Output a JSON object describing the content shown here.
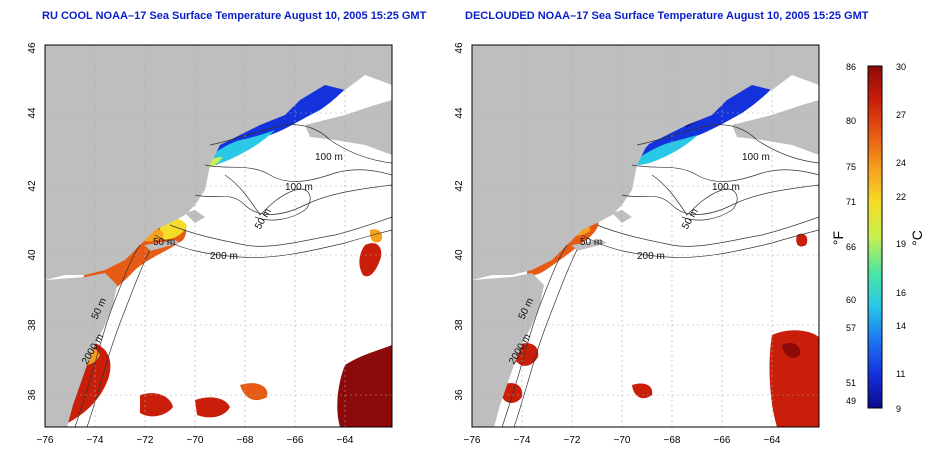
{
  "panels": [
    {
      "title": "RU COOL NOAA–17 Sea Surface Temperature August 10, 2005 15:25 GMT",
      "contour_labels": [
        "100 m",
        "100 m",
        "50 m",
        "200 m",
        "50 m",
        "50 m",
        "2000 m"
      ]
    },
    {
      "title": "DECLOUDED NOAA–17 Sea Surface Temperature August 10, 2005 15:25 GMT",
      "contour_labels": [
        "100 m",
        "100 m",
        "50 m",
        "200 m",
        "50 m",
        "50 m",
        "2000 m"
      ]
    }
  ],
  "axes": {
    "x_ticks": [
      "−76",
      "−74",
      "−72",
      "−70",
      "−68",
      "−66",
      "−64"
    ],
    "y_ticks": [
      "36",
      "38",
      "40",
      "42",
      "44",
      "46"
    ]
  },
  "colorbar": {
    "fahrenheit_label": "°F",
    "celsius_label": "°C",
    "fahrenheit_ticks": [
      "86",
      "80",
      "75",
      "71",
      "66",
      "60",
      "57",
      "51",
      "49"
    ],
    "celsius_ticks": [
      "30",
      "27",
      "24",
      "22",
      "19",
      "16",
      "14",
      "11",
      "9"
    ],
    "colors": [
      "#0a0a8c",
      "#1432dc",
      "#1e78f0",
      "#28c8e6",
      "#50e6a0",
      "#c8f050",
      "#f5dc28",
      "#f5a01e",
      "#e65a14",
      "#c81e0a",
      "#8c0a0a"
    ]
  },
  "colors": {
    "land": "#bebebe",
    "title": "#0a1ec8"
  }
}
